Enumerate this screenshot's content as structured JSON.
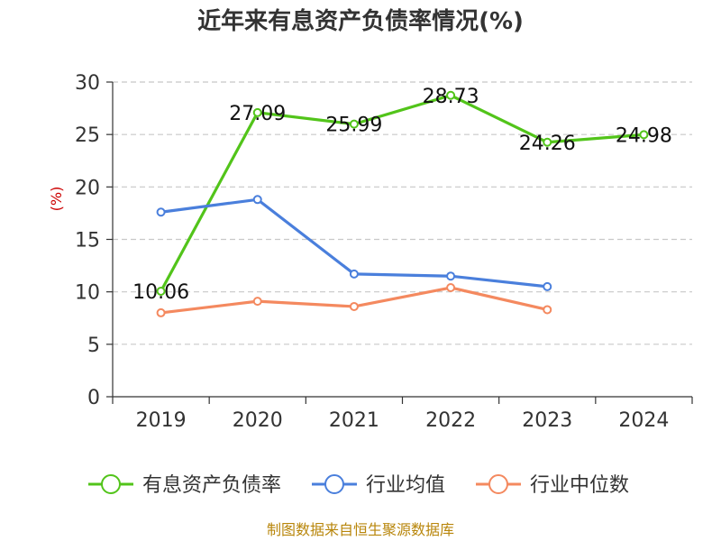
{
  "chart_data": {
    "type": "line",
    "title": "近年来有息资产负债率情况(%)",
    "ylabel": "(%)",
    "categories": [
      "2019",
      "2020",
      "2021",
      "2022",
      "2023",
      "2024"
    ],
    "ylim": [
      0,
      30
    ],
    "yticks": [
      0,
      5,
      10,
      15,
      20,
      25,
      30
    ],
    "grid": true,
    "legend_position": "bottom",
    "series": [
      {
        "name": "有息资产负债率",
        "color": "#52c41a",
        "values": [
          10.06,
          27.09,
          25.99,
          28.73,
          24.26,
          24.98
        ],
        "labels": [
          "10.06",
          "27.09",
          "25.99",
          "28.73",
          "24.26",
          "24.98"
        ]
      },
      {
        "name": "行业均值",
        "color": "#4a7fdc",
        "values": [
          17.6,
          18.8,
          11.7,
          11.5,
          10.5,
          null
        ]
      },
      {
        "name": "行业中位数",
        "color": "#f4895f",
        "values": [
          8.0,
          9.1,
          8.6,
          10.4,
          8.3,
          null
        ]
      }
    ]
  },
  "source": "制图数据来自恒生聚源数据库"
}
